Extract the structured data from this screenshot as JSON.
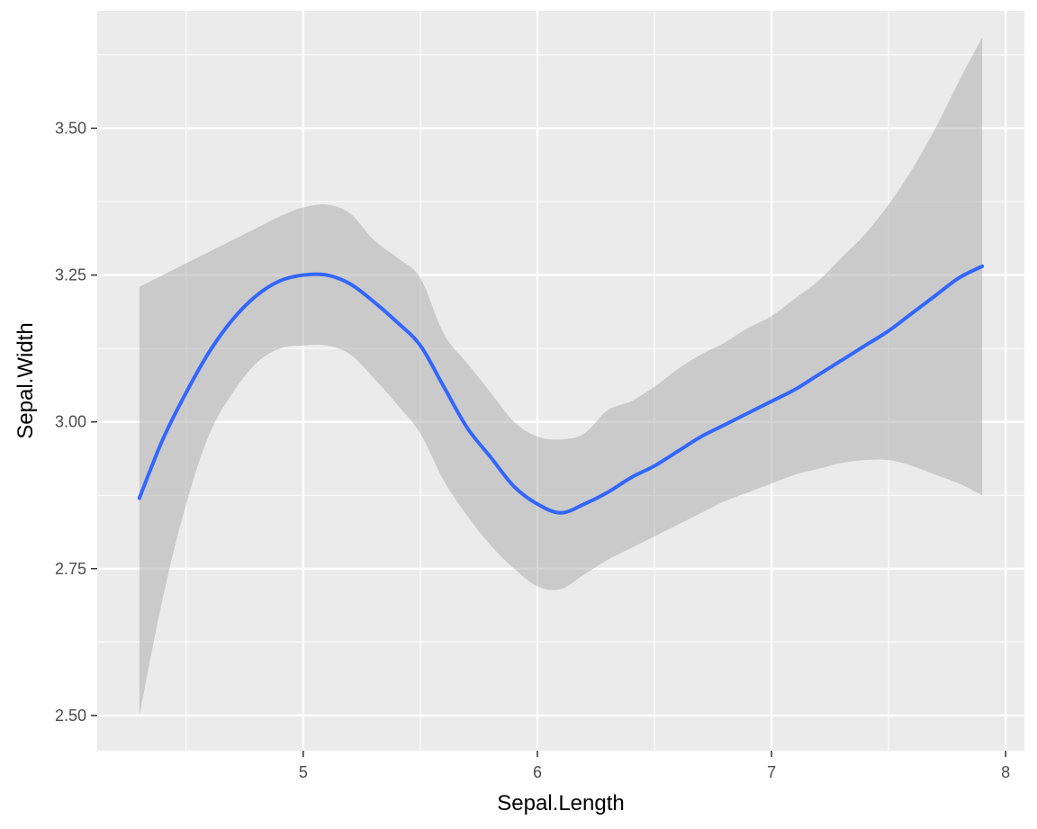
{
  "chart_data": {
    "type": "line",
    "title": "",
    "xlabel": "Sepal.Length",
    "ylabel": "Sepal.Width",
    "xlim": [
      4.12,
      8.08
    ],
    "ylim": [
      2.44,
      3.7
    ],
    "x_ticks": [
      5,
      6,
      7,
      8
    ],
    "x_tick_labels": [
      "5",
      "6",
      "7",
      "8"
    ],
    "y_ticks": [
      2.5,
      2.75,
      3.0,
      3.25,
      3.5
    ],
    "y_tick_labels": [
      "2.50",
      "2.75",
      "3.00",
      "3.25",
      "3.50"
    ],
    "grid": true,
    "legend": "none",
    "colors": {
      "panel": "#ebebeb",
      "grid": "#ffffff",
      "line": "#3366ff",
      "ribbon": "#999999"
    },
    "series": [
      {
        "x": [
          4.3,
          4.4,
          4.5,
          4.6,
          4.7,
          4.8,
          4.9,
          5.0,
          5.1,
          5.2,
          5.3,
          5.4,
          5.5,
          5.6,
          5.7,
          5.8,
          5.9,
          6.0,
          6.1,
          6.2,
          6.3,
          6.4,
          6.5,
          6.6,
          6.7,
          6.8,
          6.9,
          7.0,
          7.1,
          7.2,
          7.3,
          7.4,
          7.5,
          7.6,
          7.7,
          7.8,
          7.9
        ],
        "y": [
          2.87,
          2.97,
          3.05,
          3.12,
          3.175,
          3.215,
          3.24,
          3.25,
          3.25,
          3.235,
          3.205,
          3.17,
          3.13,
          3.06,
          2.99,
          2.94,
          2.89,
          2.86,
          2.845,
          2.86,
          2.88,
          2.905,
          2.925,
          2.95,
          2.975,
          2.995,
          3.015,
          3.035,
          3.055,
          3.08,
          3.105,
          3.13,
          3.155,
          3.185,
          3.215,
          3.245,
          3.265
        ],
        "ymin": [
          2.5,
          2.7,
          2.86,
          2.98,
          3.05,
          3.1,
          3.125,
          3.13,
          3.13,
          3.115,
          3.075,
          3.03,
          2.98,
          2.9,
          2.84,
          2.79,
          2.75,
          2.72,
          2.715,
          2.74,
          2.765,
          2.785,
          2.805,
          2.825,
          2.845,
          2.865,
          2.88,
          2.895,
          2.91,
          2.92,
          2.93,
          2.935,
          2.935,
          2.925,
          2.91,
          2.895,
          2.875
        ],
        "ymax": [
          3.23,
          3.25,
          3.27,
          3.29,
          3.31,
          3.33,
          3.35,
          3.365,
          3.37,
          3.355,
          3.31,
          3.28,
          3.245,
          3.15,
          3.1,
          3.05,
          3.0,
          2.975,
          2.97,
          2.98,
          3.02,
          3.035,
          3.06,
          3.09,
          3.115,
          3.135,
          3.16,
          3.18,
          3.21,
          3.24,
          3.28,
          3.32,
          3.37,
          3.43,
          3.5,
          3.58,
          3.655
        ]
      }
    ]
  }
}
